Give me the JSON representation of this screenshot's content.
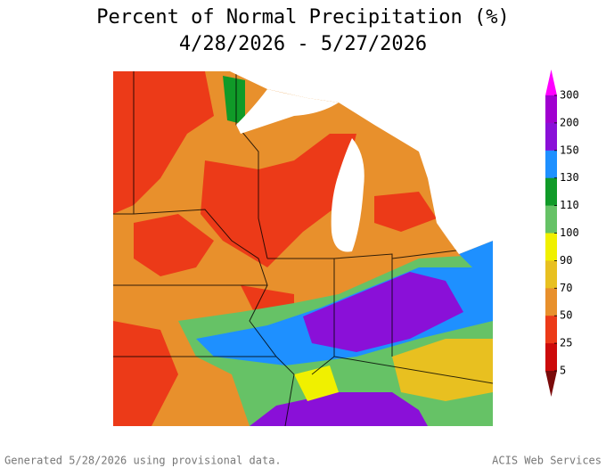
{
  "header": {
    "title": "Percent of Normal Precipitation (%)",
    "subtitle": "4/28/2026 - 5/27/2026"
  },
  "legend": {
    "labels": [
      300,
      200,
      150,
      130,
      110,
      100,
      90,
      70,
      50,
      25,
      5
    ],
    "colors": [
      "#ff00ff",
      "#a000d0",
      "#8a10d8",
      "#1e90ff",
      "#109a28",
      "#66c266",
      "#f0f000",
      "#e8c020",
      "#e8902c",
      "#ec3a18",
      "#cc0a0a",
      "#7a0a0a"
    ]
  },
  "footer": {
    "left": "Generated 5/28/2026 using provisional data.",
    "right": "ACIS Web Services"
  }
}
